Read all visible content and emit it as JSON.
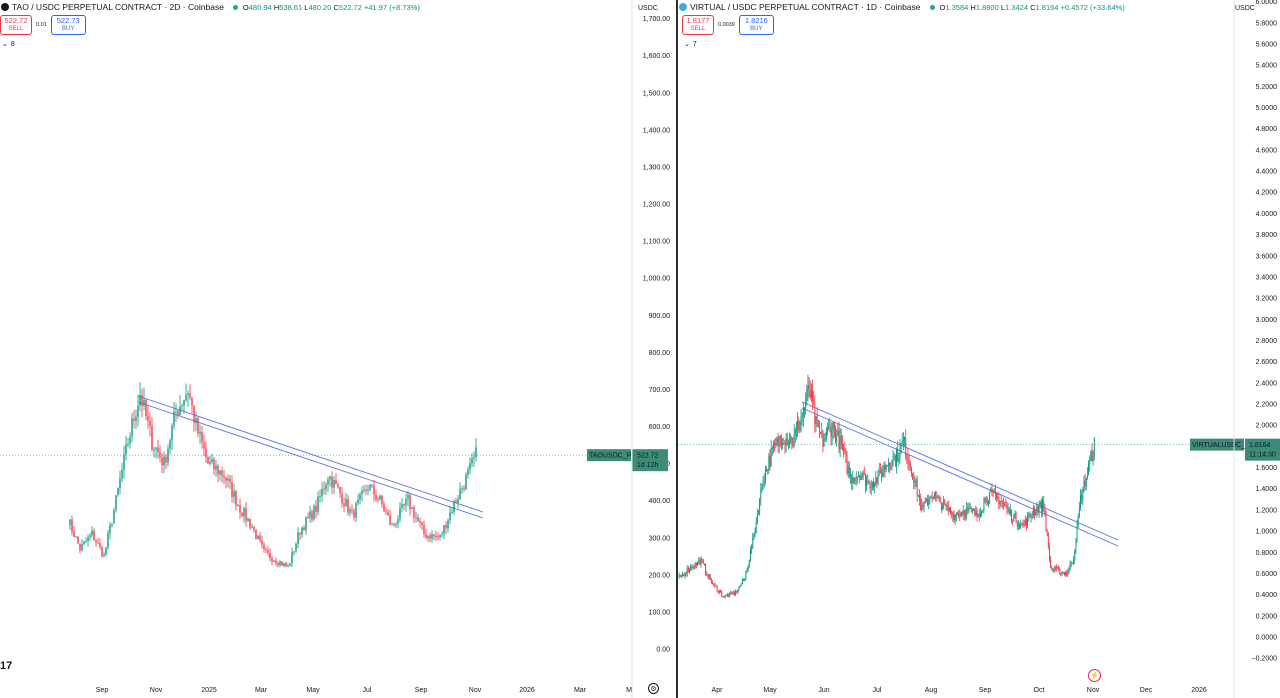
{
  "left": {
    "symbol_label": "TAO / USDC PERPETUAL CONTRACT · 2D · Coinbase",
    "ohlc": {
      "o_label": "O",
      "o": "480.94",
      "h_label": "H",
      "h": "538.61",
      "l_label": "L",
      "l": "480.20",
      "c_label": "C",
      "c": "522.72",
      "change": "+41.97 (+8.73%)"
    },
    "sell_price": "522.72",
    "sell_label": "SELL",
    "spread": "0.01",
    "buy_price": "522.73",
    "buy_label": "BUY",
    "indicators_count": "8",
    "currency": "USDC",
    "price_tag": "522.72",
    "countdown": "1d 12h",
    "ticker_tag": "TAOUSDC_P",
    "y_ticks": [
      "1,700.00",
      "1,600.00",
      "1,500.00",
      "1,400.00",
      "1,300.00",
      "1,200.00",
      "1,100.00",
      "1,000.00",
      "900.00",
      "800.00",
      "700.00",
      "600.00",
      "500.00",
      "400.00",
      "300.00",
      "200.00",
      "100.00",
      "0.00"
    ],
    "x_ticks": [
      "Sep",
      "Nov",
      "2025",
      "Mar",
      "May",
      "Jul",
      "Sep",
      "Nov",
      "2026",
      "Mar",
      "M"
    ],
    "tv_logo": "17"
  },
  "right": {
    "symbol_label": "VIRTUAL / USDC PERPETUAL CONTRACT · 1D · Coinbase",
    "ohlc": {
      "o_label": "O",
      "o": "1.3584",
      "h_label": "H",
      "h": "1.8800",
      "l_label": "L",
      "l": "1.3424",
      "c_label": "C",
      "c": "1.8164",
      "change": "+0.4572 (+33.64%)"
    },
    "sell_price": "1.8177",
    "sell_label": "SELL",
    "spread": "0.0039",
    "buy_price": "1.8216",
    "buy_label": "BUY",
    "indicators_count": "7",
    "currency": "USDC",
    "price_tag": "1.8164",
    "countdown": "11:14:30",
    "ticker_tag": "VIRTUALUSDC_P",
    "y_ticks": [
      "6.0000",
      "5.8000",
      "5.6000",
      "5.4000",
      "5.2000",
      "5.0000",
      "4.8000",
      "4.6000",
      "4.4000",
      "4.2000",
      "4.0000",
      "3.8000",
      "3.6000",
      "3.4000",
      "3.2000",
      "3.0000",
      "2.8000",
      "2.6000",
      "2.4000",
      "2.2000",
      "2.0000",
      "1.8000",
      "1.6000",
      "1.4000",
      "1.2000",
      "1.0000",
      "0.8000",
      "0.6000",
      "0.4000",
      "0.2000",
      "0.0000",
      "−0.2000"
    ],
    "x_ticks": [
      "Apr",
      "May",
      "Jun",
      "Jul",
      "Aug",
      "Sep",
      "Oct",
      "Nov",
      "Dec",
      "2026"
    ]
  },
  "colors": {
    "up": "#089981",
    "down": "#f23645",
    "trendline": "#5b6ee1",
    "price_tag": "#3c8c78"
  }
}
